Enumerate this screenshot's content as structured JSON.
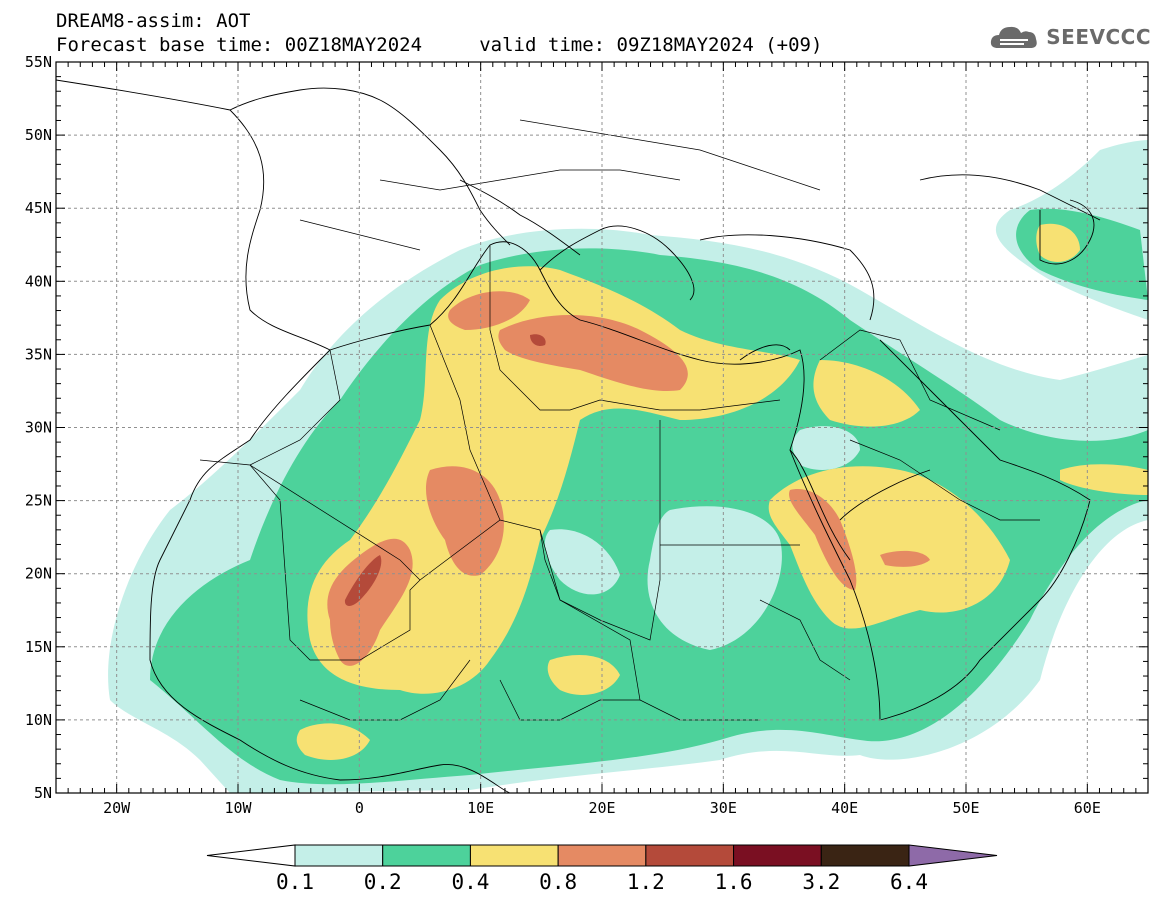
{
  "header": {
    "title_line1": "DREAM8-assim: AOT",
    "title_line2": "Forecast base time: 00Z18MAY2024     valid time: 09Z18MAY2024 (+09)"
  },
  "logo": {
    "text": "SEEVCCC",
    "icon": "cloud-icon"
  },
  "axes": {
    "lon_labels": [
      "20W",
      "10W",
      "0",
      "10E",
      "20E",
      "30E",
      "40E",
      "50E",
      "60E"
    ],
    "lat_labels": [
      "5N",
      "10N",
      "15N",
      "20N",
      "25N",
      "30N",
      "35N",
      "40N",
      "45N",
      "50N",
      "55N"
    ],
    "lon_range": [
      -25,
      65
    ],
    "lat_range": [
      5,
      55
    ],
    "grid": true
  },
  "colorbar": {
    "labels": [
      "0.1",
      "0.2",
      "0.4",
      "0.8",
      "1.2",
      "1.6",
      "3.2",
      "6.4"
    ],
    "colors": [
      "#ffffff",
      "#c4efe8",
      "#4dd29b",
      "#f7e173",
      "#e58a63",
      "#b44a3a",
      "#7a0f22",
      "#3a2414",
      "#8e6aa8"
    ]
  },
  "map": {
    "variable": "AOT",
    "region": "North Africa, Middle East and Southern Europe",
    "colors": {
      "0.1-0.2": "#c4efe8",
      "0.2-0.4": "#4dd29b",
      "0.4-0.8": "#f7e173",
      "0.8-1.2": "#e58a63",
      "1.2-1.6": "#b44a3a",
      "1.6-3.2": "#7a0f22"
    }
  }
}
